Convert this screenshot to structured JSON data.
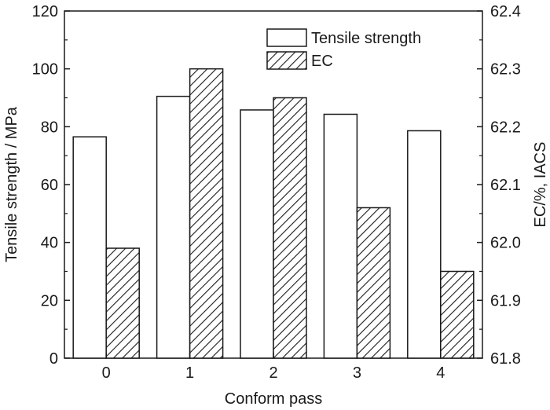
{
  "chart_data": {
    "type": "bar",
    "xlabel": "Conform pass",
    "ylabel": "Tensile strength / MPa",
    "y2label": "EC/%, IACS",
    "categories": [
      "0",
      "1",
      "2",
      "3",
      "4"
    ],
    "ylim": [
      0,
      120
    ],
    "y2lim": [
      61.8,
      62.4
    ],
    "yticks": [
      "0",
      "20",
      "40",
      "60",
      "80",
      "100",
      "120"
    ],
    "y2ticks": [
      "61.8",
      "61.9",
      "62.0",
      "62.1",
      "62.2",
      "62.3",
      "62.4"
    ],
    "grid": false,
    "legend_position": "top-right",
    "series": [
      {
        "name": "Tensile strength",
        "axis": "left",
        "fill": "#ffffff",
        "pattern": "none",
        "values": [
          76.5,
          90.5,
          85.8,
          84.3,
          78.6
        ]
      },
      {
        "name": "EC",
        "axis": "right",
        "fill": "#ffffff",
        "pattern": "diagonal-hatch",
        "values": [
          61.99,
          62.3,
          62.25,
          62.06,
          61.95
        ]
      }
    ]
  }
}
